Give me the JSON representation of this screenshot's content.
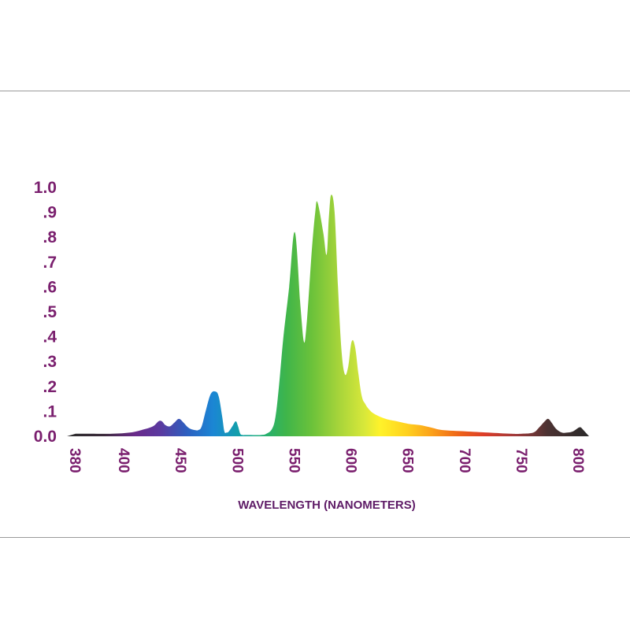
{
  "chart_data": {
    "type": "area",
    "title": "",
    "xlabel": "WAVELENGTH (NANOMETERS)",
    "ylabel": "",
    "xlim": [
      380,
      800
    ],
    "ylim": [
      0,
      1.0
    ],
    "x_ticks": [
      380,
      400,
      450,
      500,
      550,
      600,
      650,
      700,
      750,
      800
    ],
    "x_tick_labels": [
      "380",
      "400",
      "450",
      "500",
      "550",
      "600",
      "650",
      "700",
      "750",
      "800"
    ],
    "y_ticks": [
      0,
      0.1,
      0.2,
      0.3,
      0.4,
      0.5,
      0.6,
      0.7,
      0.8,
      0.9,
      1.0
    ],
    "y_tick_labels": [
      "0.0",
      ".1",
      ".2",
      ".3",
      ".4",
      ".5",
      ".6",
      ".7",
      ".8",
      ".9",
      "1.0"
    ],
    "grid": false,
    "legend": "none",
    "fill": "visible spectrum gradient",
    "series": [
      {
        "x": [
          380,
          385,
          395,
          405,
          415,
          425,
          430,
          433,
          436,
          440,
          444,
          448,
          452,
          455,
          458,
          462,
          465,
          468,
          472,
          476,
          480,
          483,
          486,
          488,
          490,
          492,
          495,
          498,
          500,
          502,
          504,
          506,
          510,
          520,
          525,
          530,
          533,
          536,
          540,
          545,
          550,
          555,
          558,
          560,
          562,
          565,
          568,
          570,
          575,
          578,
          580,
          582,
          585,
          588,
          591,
          594,
          597,
          600,
          603,
          606,
          609,
          612,
          615,
          620,
          630,
          640,
          650,
          660,
          670,
          680,
          700,
          720,
          740,
          750,
          760,
          765,
          770,
          773,
          776,
          780,
          785,
          790,
          795,
          800,
          802
        ],
        "y": [
          0.01,
          0.01,
          0.01,
          0.015,
          0.025,
          0.04,
          0.06,
          0.06,
          0.045,
          0.04,
          0.055,
          0.07,
          0.055,
          0.04,
          0.03,
          0.025,
          0.025,
          0.04,
          0.11,
          0.17,
          0.18,
          0.16,
          0.08,
          0.02,
          0.015,
          0.02,
          0.04,
          0.06,
          0.04,
          0.01,
          0.005,
          0.005,
          0.005,
          0.005,
          0.01,
          0.03,
          0.08,
          0.2,
          0.4,
          0.6,
          0.82,
          0.52,
          0.38,
          0.43,
          0.55,
          0.75,
          0.9,
          0.94,
          0.82,
          0.73,
          0.88,
          0.97,
          0.9,
          0.6,
          0.35,
          0.25,
          0.28,
          0.38,
          0.36,
          0.25,
          0.16,
          0.13,
          0.11,
          0.09,
          0.07,
          0.06,
          0.05,
          0.045,
          0.035,
          0.025,
          0.02,
          0.015,
          0.01,
          0.01,
          0.015,
          0.035,
          0.06,
          0.07,
          0.055,
          0.03,
          0.015,
          0.015,
          0.02,
          0.035,
          0.035
        ]
      }
    ]
  }
}
